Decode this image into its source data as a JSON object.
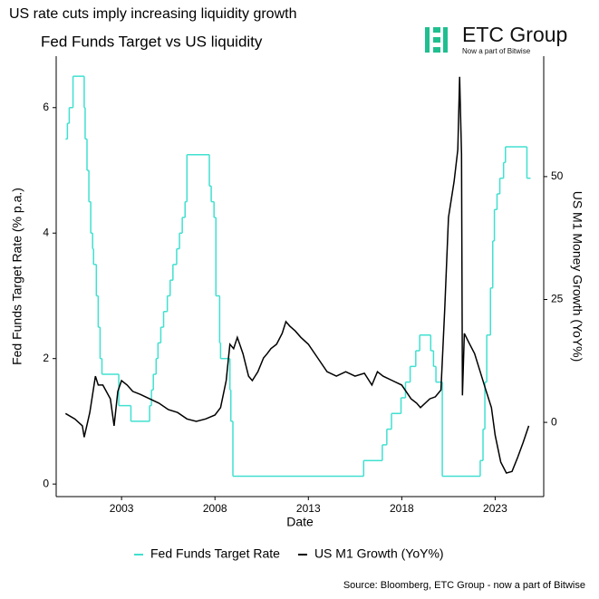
{
  "chart_data": {
    "type": "line",
    "title": "US rate cuts imply increasing liquidity growth",
    "subtitle": "Fed  Funds Target vs US liquidity",
    "x_label": "Date",
    "y_label": "Fed Funds Target Rate (% p.a.)",
    "y2_label": "US M1 Money Growth (YoY%)",
    "source": "Source: Bloomberg, ETC Group - now a part of Bitwise",
    "logo": {
      "name": "ETC Group",
      "tagline": "Now a part of Bitwise"
    },
    "xlim": [
      1999.5,
      2025.6
    ],
    "xticks": [
      2003,
      2008,
      2013,
      2018,
      2023
    ],
    "ylim": [
      -0.2,
      6.82
    ],
    "yticks": [
      0,
      2,
      4,
      6
    ],
    "y2lim": [
      -15.1,
      74.5
    ],
    "y2ticks": [
      0,
      25,
      50
    ],
    "legend": "bottom",
    "series": [
      {
        "name": "Fed Funds Target Rate",
        "color": "#40e0d0",
        "step": true,
        "x": [
          2000.0,
          2000.1,
          2000.2,
          2000.4,
          2001.0,
          2001.05,
          2001.15,
          2001.25,
          2001.35,
          2001.45,
          2001.5,
          2001.65,
          2001.75,
          2001.85,
          2001.95,
          2002.85,
          2003.5,
          2004.5,
          2004.6,
          2004.7,
          2004.85,
          2004.95,
          2005.1,
          2005.25,
          2005.45,
          2005.6,
          2005.75,
          2005.95,
          2006.1,
          2006.25,
          2006.4,
          2006.5,
          2007.7,
          2007.8,
          2007.95,
          2008.05,
          2008.25,
          2008.3,
          2008.8,
          2008.85,
          2008.96,
          2015.96,
          2016.96,
          2017.2,
          2017.45,
          2017.96,
          2018.2,
          2018.45,
          2018.75,
          2018.96,
          2019.55,
          2019.7,
          2019.83,
          2020.17,
          2022.2,
          2022.35,
          2022.45,
          2022.55,
          2022.75,
          2022.87,
          2022.96,
          2023.1,
          2023.25,
          2023.45,
          2023.55,
          2024.7
        ],
        "values": [
          5.5,
          5.75,
          6.0,
          6.5,
          6.0,
          5.5,
          5.0,
          4.5,
          4.0,
          3.75,
          3.5,
          3.0,
          2.5,
          2.0,
          1.75,
          1.25,
          1.0,
          1.25,
          1.5,
          1.75,
          2.0,
          2.25,
          2.5,
          2.75,
          3.0,
          3.25,
          3.5,
          3.75,
          4.0,
          4.25,
          4.5,
          5.25,
          4.75,
          4.5,
          4.25,
          3.0,
          2.25,
          2.0,
          1.5,
          1.0,
          0.125,
          0.375,
          0.625,
          0.875,
          1.125,
          1.375,
          1.625,
          1.875,
          2.125,
          2.375,
          2.125,
          1.875,
          1.625,
          0.125,
          0.375,
          0.875,
          1.625,
          2.375,
          3.125,
          3.875,
          4.375,
          4.625,
          4.875,
          5.125,
          5.375,
          4.875
        ]
      },
      {
        "name": "US M1 Growth (YoY%)",
        "color": "#000000",
        "axis": "y2",
        "x": [
          2000.0,
          2000.5,
          2000.9,
          2001.0,
          2001.3,
          2001.6,
          2001.75,
          2002.0,
          2002.4,
          2002.6,
          2002.8,
          2003.0,
          2003.3,
          2003.6,
          2004.0,
          2004.5,
          2005.0,
          2005.5,
          2006.0,
          2006.5,
          2007.0,
          2007.5,
          2008.0,
          2008.3,
          2008.6,
          2008.8,
          2009.0,
          2009.2,
          2009.5,
          2009.8,
          2010.0,
          2010.3,
          2010.6,
          2010.8,
          2011.0,
          2011.3,
          2011.6,
          2011.8,
          2012.0,
          2012.3,
          2012.6,
          2013.0,
          2013.5,
          2014.0,
          2014.5,
          2015.0,
          2015.5,
          2016.0,
          2016.4,
          2016.7,
          2017.0,
          2017.5,
          2018.0,
          2018.5,
          2018.8,
          2019.0,
          2019.5,
          2019.8,
          2020.1,
          2020.3,
          2020.5,
          2020.8,
          2021.0,
          2021.1,
          2021.2,
          2021.25,
          2021.35,
          2021.6,
          2021.9,
          2022.2,
          2022.5,
          2022.8,
          2023.0,
          2023.3,
          2023.6,
          2023.9,
          2024.2,
          2024.5,
          2024.8
        ],
        "values": [
          1.8,
          0.7,
          -0.7,
          -3.0,
          2.0,
          9.4,
          7.6,
          7.6,
          4.8,
          -0.7,
          6.3,
          8.5,
          7.6,
          6.3,
          5.7,
          4.8,
          3.9,
          2.6,
          2.0,
          0.7,
          0.2,
          0.7,
          1.5,
          3.0,
          8.5,
          15.9,
          15.0,
          17.3,
          14.0,
          9.4,
          8.5,
          10.3,
          13.1,
          14.0,
          15.0,
          15.9,
          18.1,
          20.5,
          19.6,
          18.6,
          17.3,
          15.9,
          13.1,
          10.3,
          9.4,
          10.3,
          9.4,
          10.0,
          7.6,
          10.3,
          9.4,
          8.5,
          7.6,
          4.8,
          3.9,
          3.0,
          4.8,
          5.2,
          6.6,
          23.2,
          41.7,
          49.0,
          55.5,
          70.3,
          54.6,
          5.5,
          18.1,
          16.2,
          14.0,
          10.3,
          6.6,
          3.0,
          -2.6,
          -8.1,
          -10.3,
          -10.0,
          -7.2,
          -4.1,
          -0.7
        ]
      }
    ]
  }
}
